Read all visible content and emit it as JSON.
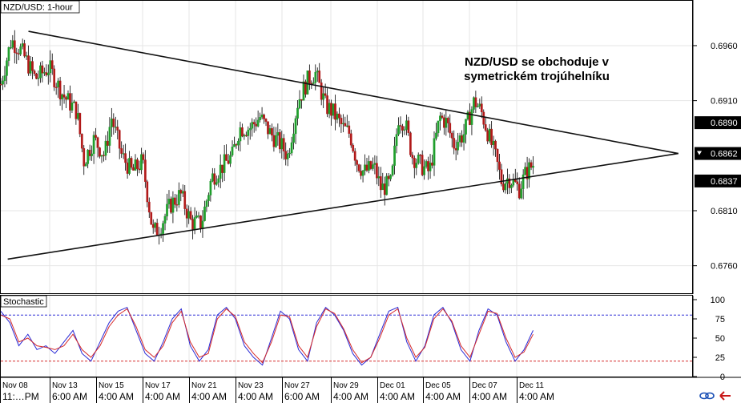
{
  "chart_data": [
    {
      "type": "candlestick",
      "title": "NZD/USD: 1-hour",
      "annotation": "NZD/USD se obchoduje v symetrickém trojúhelníku",
      "ylim": [
        0.6735,
        0.7
      ],
      "y_ticks": [
        "0.6960",
        "0.6910",
        "0.6810",
        "0.6760"
      ],
      "price_markers": [
        {
          "label": "0.6890",
          "value": 0.689
        },
        {
          "label": "0.6862",
          "value": 0.6862,
          "current": true
        },
        {
          "label": "0.6837",
          "value": 0.6837
        }
      ],
      "x_date_labels": [
        "Nov 08",
        "Nov 13",
        "Nov 15",
        "Nov 17",
        "Nov 21",
        "Nov 23",
        "Nov 27",
        "Nov 29",
        "Dec 01",
        "Dec 05",
        "Dec 07",
        "Dec 11"
      ],
      "x_time_labels": [
        "11:…PM",
        "6:00 AM",
        "4:00 AM",
        "4:00 AM",
        "4:00 AM",
        "4:00 AM",
        "6:00 AM",
        "4:00 AM",
        "4:00 AM",
        "4:00 AM",
        "4:00 AM",
        "4:00 AM"
      ],
      "trendlines": [
        {
          "name": "upper",
          "from": {
            "t": 0.04,
            "v": 0.6973
          },
          "to": {
            "t": 0.98,
            "v": 0.6862
          }
        },
        {
          "name": "lower",
          "from": {
            "t": 0.01,
            "v": 0.6766
          },
          "to": {
            "t": 0.98,
            "v": 0.6862
          }
        }
      ],
      "price_path": [
        [
          0.0,
          0.6925
        ],
        [
          0.015,
          0.6965
        ],
        [
          0.03,
          0.6955
        ],
        [
          0.05,
          0.693
        ],
        [
          0.07,
          0.694
        ],
        [
          0.09,
          0.6915
        ],
        [
          0.11,
          0.69
        ],
        [
          0.12,
          0.6855
        ],
        [
          0.135,
          0.6875
        ],
        [
          0.15,
          0.686
        ],
        [
          0.16,
          0.6895
        ],
        [
          0.175,
          0.686
        ],
        [
          0.19,
          0.6845
        ],
        [
          0.205,
          0.6855
        ],
        [
          0.22,
          0.679
        ],
        [
          0.23,
          0.6795
        ],
        [
          0.245,
          0.6815
        ],
        [
          0.26,
          0.6825
        ],
        [
          0.275,
          0.68
        ],
        [
          0.29,
          0.6798
        ],
        [
          0.305,
          0.684
        ],
        [
          0.32,
          0.685
        ],
        [
          0.335,
          0.686
        ],
        [
          0.345,
          0.6885
        ],
        [
          0.36,
          0.6885
        ],
        [
          0.375,
          0.6895
        ],
        [
          0.39,
          0.688
        ],
        [
          0.405,
          0.687
        ],
        [
          0.415,
          0.686
        ],
        [
          0.43,
          0.691
        ],
        [
          0.445,
          0.693
        ],
        [
          0.455,
          0.6935
        ],
        [
          0.47,
          0.6905
        ],
        [
          0.48,
          0.69
        ],
        [
          0.495,
          0.6885
        ],
        [
          0.505,
          0.688
        ],
        [
          0.515,
          0.6855
        ],
        [
          0.525,
          0.6845
        ],
        [
          0.54,
          0.685
        ],
        [
          0.55,
          0.683
        ],
        [
          0.565,
          0.6835
        ],
        [
          0.575,
          0.6895
        ],
        [
          0.585,
          0.689
        ],
        [
          0.595,
          0.686
        ],
        [
          0.61,
          0.685
        ],
        [
          0.62,
          0.6845
        ],
        [
          0.635,
          0.6895
        ],
        [
          0.645,
          0.689
        ],
        [
          0.655,
          0.687
        ],
        [
          0.67,
          0.688
        ],
        [
          0.685,
          0.691
        ],
        [
          0.695,
          0.69
        ],
        [
          0.705,
          0.688
        ],
        [
          0.715,
          0.686
        ],
        [
          0.725,
          0.6835
        ],
        [
          0.735,
          0.684
        ],
        [
          0.75,
          0.683
        ],
        [
          0.76,
          0.6845
        ],
        [
          0.77,
          0.6852
        ]
      ]
    },
    {
      "type": "line",
      "title": "Stochastic",
      "ylim": [
        0,
        100
      ],
      "y_ticks": [
        "100",
        "75",
        "50",
        "25",
        "0"
      ],
      "levels": [
        80,
        20
      ],
      "series": [
        {
          "color": "#2b2bd6",
          "values": [
            85,
            70,
            40,
            55,
            35,
            40,
            30,
            45,
            60,
            30,
            20,
            45,
            70,
            85,
            90,
            60,
            30,
            20,
            45,
            75,
            88,
            40,
            20,
            35,
            80,
            90,
            75,
            40,
            25,
            15,
            50,
            85,
            75,
            35,
            20,
            70,
            90,
            80,
            60,
            30,
            15,
            25,
            55,
            85,
            90,
            45,
            20,
            40,
            80,
            90,
            70,
            35,
            20,
            60,
            88,
            80,
            45,
            20,
            35,
            60
          ]
        },
        {
          "color": "#d62b2b",
          "values": [
            80,
            75,
            45,
            50,
            40,
            38,
            35,
            40,
            55,
            35,
            25,
            40,
            65,
            80,
            88,
            65,
            35,
            25,
            40,
            70,
            85,
            45,
            25,
            30,
            75,
            88,
            78,
            45,
            30,
            18,
            45,
            80,
            78,
            40,
            25,
            65,
            88,
            82,
            62,
            35,
            18,
            25,
            50,
            80,
            88,
            50,
            25,
            38,
            75,
            88,
            72,
            40,
            25,
            55,
            85,
            82,
            50,
            25,
            32,
            55
          ]
        }
      ]
    }
  ],
  "colors": {
    "bullish": "#1f9e2c",
    "bearish": "#b01818",
    "trendline": "#111111",
    "grid": "#e6e6e6",
    "level_high": "#2b2bd6",
    "level_low": "#d62b2b"
  },
  "icons": [
    "link-icon",
    "arrow-icon"
  ]
}
